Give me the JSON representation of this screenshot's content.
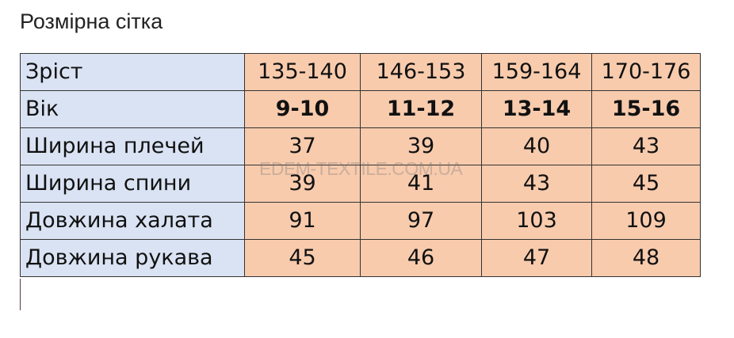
{
  "title": "Розмірна сітка",
  "watermark": "EDEM-TEXTILE.COM.UA",
  "colors": {
    "label_bg": "#dae3f3",
    "value_bg": "#f8cbad"
  },
  "rows": [
    {
      "label": "Зріст",
      "values": [
        "135-140",
        "146-153",
        "159-164",
        "170-176"
      ],
      "bold": false
    },
    {
      "label": "Вік",
      "values": [
        "9-10",
        "11-12",
        "13-14",
        "15-16"
      ],
      "bold": true
    },
    {
      "label": "Ширина плечей",
      "values": [
        "37",
        "39",
        "40",
        "43"
      ],
      "bold": false
    },
    {
      "label": "Ширина спини",
      "values": [
        "39",
        "41",
        "43",
        "45"
      ],
      "bold": false
    },
    {
      "label": "Довжина халата",
      "values": [
        "91",
        "97",
        "103",
        "109"
      ],
      "bold": false
    },
    {
      "label": "Довжина рукава",
      "values": [
        "45",
        "46",
        "47",
        "48"
      ],
      "bold": false
    }
  ]
}
